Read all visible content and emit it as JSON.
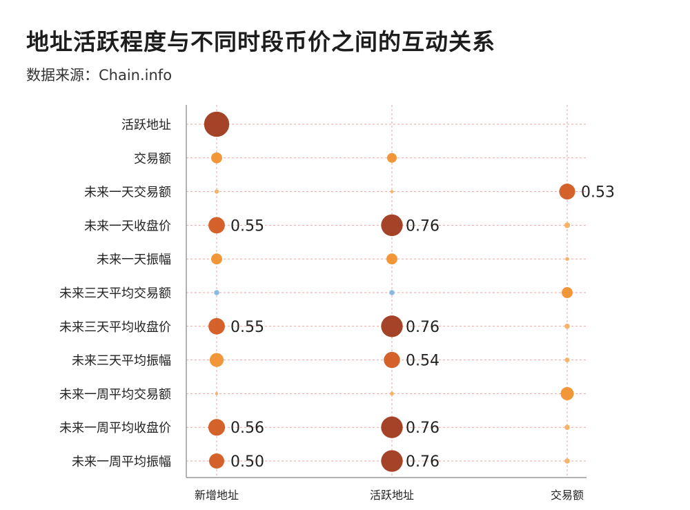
{
  "title": "地址活跃程度与不同时段币价之间的互动关系",
  "subtitle": "数据来源：Chain.info",
  "chart_data": {
    "type": "bubble-matrix",
    "columns": [
      "新增地址",
      "活跃地址",
      "交易额"
    ],
    "rows": [
      "活跃地址",
      "交易额",
      "未来一天交易额",
      "未来一天收盘价",
      "未来一天振幅",
      "未来三天平均交易额",
      "未来三天平均收盘价",
      "未来三天平均振幅",
      "未来一周平均交易额",
      "未来一周平均收盘价",
      "未来一周平均振幅"
    ],
    "values": [
      [
        0.9,
        null,
        null
      ],
      [
        0.33,
        0.28,
        null
      ],
      [
        0.06,
        0.02,
        0.53
      ],
      [
        0.55,
        0.76,
        0.12
      ],
      [
        0.33,
        0.33,
        0.04
      ],
      [
        -0.1,
        -0.1,
        0.33
      ],
      [
        0.55,
        0.76,
        0.1
      ],
      [
        0.45,
        0.54,
        0.08
      ],
      [
        0.01,
        0.05,
        0.42
      ],
      [
        0.56,
        0.76,
        0.1
      ],
      [
        0.5,
        0.76,
        0.1
      ]
    ],
    "labels": [
      [
        null,
        null,
        null
      ],
      [
        null,
        null,
        null
      ],
      [
        null,
        null,
        "0.53"
      ],
      [
        "0.55",
        "0.76",
        null
      ],
      [
        null,
        null,
        null
      ],
      [
        null,
        null,
        null
      ],
      [
        "0.55",
        "0.76",
        null
      ],
      [
        null,
        "0.54",
        null
      ],
      [
        null,
        null,
        null
      ],
      [
        "0.56",
        "0.76",
        null
      ],
      [
        "0.50",
        "0.76",
        null
      ]
    ],
    "grid": true,
    "colors": {
      "positive_strong": "#a0391c",
      "positive_mid": "#d35a20",
      "positive_weak": "#f0902e",
      "positive_faint": "#f4b060",
      "negative": "#7fb9dc",
      "grid": "#e3a6a6",
      "axis": "#999999"
    }
  }
}
